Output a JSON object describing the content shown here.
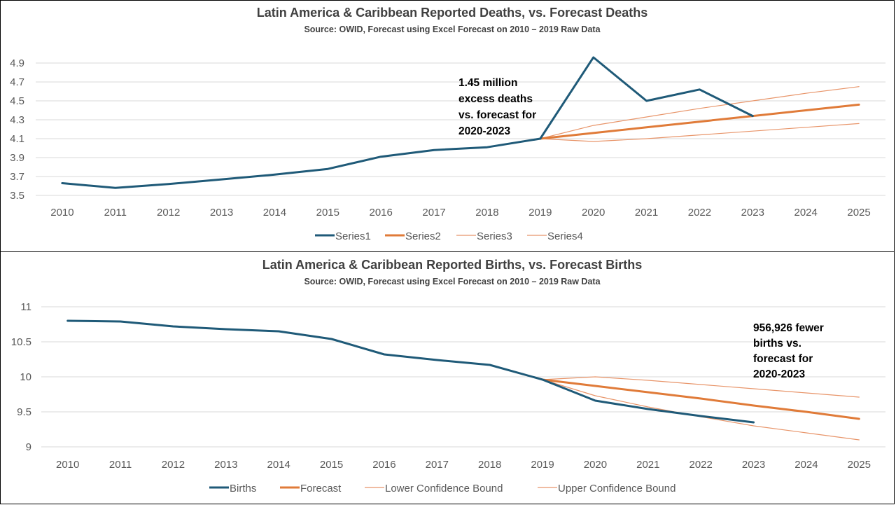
{
  "colors": {
    "actual": "#1f5a78",
    "forecast": "#e07b39",
    "bound": "#e8956a"
  },
  "chart_data": [
    {
      "type": "line",
      "title": "Latin America & Caribbean  Reported Deaths, vs. Forecast Deaths",
      "subtitle": "Source: OWID, Forecast using Excel Forecast on 2010 – 2019 Raw Data",
      "x": [
        2010,
        2011,
        2012,
        2013,
        2014,
        2015,
        2016,
        2017,
        2018,
        2019,
        2020,
        2021,
        2022,
        2023,
        2024,
        2025
      ],
      "ylim": [
        3.5,
        5.0
      ],
      "yticks": [
        "3.5",
        "3.7",
        "3.9",
        "4.1",
        "4.3",
        "4.5",
        "4.7",
        "4.9"
      ],
      "grid": true,
      "legend_position": "bottom",
      "annotation": [
        "1.45 million",
        "excess deaths",
        "vs. forecast for",
        "2020-2023"
      ],
      "series": [
        {
          "name": "Series1",
          "role": "actual",
          "x": [
            2010,
            2011,
            2012,
            2013,
            2014,
            2015,
            2016,
            2017,
            2018,
            2019,
            2020,
            2021,
            2022,
            2023
          ],
          "values": [
            3.63,
            3.58,
            3.62,
            3.67,
            3.72,
            3.78,
            3.91,
            3.98,
            4.01,
            4.1,
            4.96,
            4.5,
            4.62,
            4.34
          ]
        },
        {
          "name": "Series2",
          "role": "forecast",
          "x": [
            2019,
            2020,
            2021,
            2022,
            2023,
            2024,
            2025
          ],
          "values": [
            4.1,
            4.16,
            4.22,
            4.28,
            4.34,
            4.4,
            4.46
          ]
        },
        {
          "name": "Series3",
          "role": "bound",
          "x": [
            2019,
            2020,
            2021,
            2022,
            2023,
            2024,
            2025
          ],
          "values": [
            4.1,
            4.24,
            4.33,
            4.42,
            4.5,
            4.58,
            4.65
          ]
        },
        {
          "name": "Series4",
          "role": "bound",
          "x": [
            2019,
            2020,
            2021,
            2022,
            2023,
            2024,
            2025
          ],
          "values": [
            4.1,
            4.07,
            4.1,
            4.14,
            4.18,
            4.22,
            4.26
          ]
        }
      ]
    },
    {
      "type": "line",
      "title": "Latin America & Caribbean  Reported Births, vs. Forecast Births",
      "subtitle": "Source: OWID, Forecast using Excel Forecast on 2010 – 2019 Raw Data",
      "x": [
        2010,
        2011,
        2012,
        2013,
        2014,
        2015,
        2016,
        2017,
        2018,
        2019,
        2020,
        2021,
        2022,
        2023,
        2024,
        2025
      ],
      "ylim": [
        9,
        11
      ],
      "yticks": [
        "9",
        "9.5",
        "10",
        "10.5",
        "11"
      ],
      "grid": true,
      "legend_position": "bottom",
      "annotation": [
        "956,926 fewer",
        "births vs.",
        "forecast for",
        "2020-2023"
      ],
      "series": [
        {
          "name": "Births",
          "role": "actual",
          "x": [
            2010,
            2011,
            2012,
            2013,
            2014,
            2015,
            2016,
            2017,
            2018,
            2019,
            2020,
            2021,
            2022,
            2023
          ],
          "values": [
            10.8,
            10.79,
            10.72,
            10.68,
            10.65,
            10.54,
            10.32,
            10.24,
            10.17,
            9.96,
            9.66,
            9.54,
            9.44,
            9.35
          ]
        },
        {
          "name": "Forecast",
          "role": "forecast",
          "x": [
            2019,
            2020,
            2021,
            2022,
            2023,
            2024,
            2025
          ],
          "values": [
            9.96,
            9.87,
            9.78,
            9.69,
            9.59,
            9.5,
            9.4
          ]
        },
        {
          "name": "Lower Confidence Bound",
          "role": "bound",
          "x": [
            2019,
            2020,
            2021,
            2022,
            2023,
            2024,
            2025
          ],
          "values": [
            9.96,
            9.73,
            9.57,
            9.43,
            9.3,
            9.2,
            9.1
          ]
        },
        {
          "name": "Upper Confidence Bound",
          "role": "bound",
          "x": [
            2019,
            2020,
            2021,
            2022,
            2023,
            2024,
            2025
          ],
          "values": [
            9.96,
            10.0,
            9.95,
            9.89,
            9.83,
            9.77,
            9.71
          ]
        }
      ]
    }
  ]
}
